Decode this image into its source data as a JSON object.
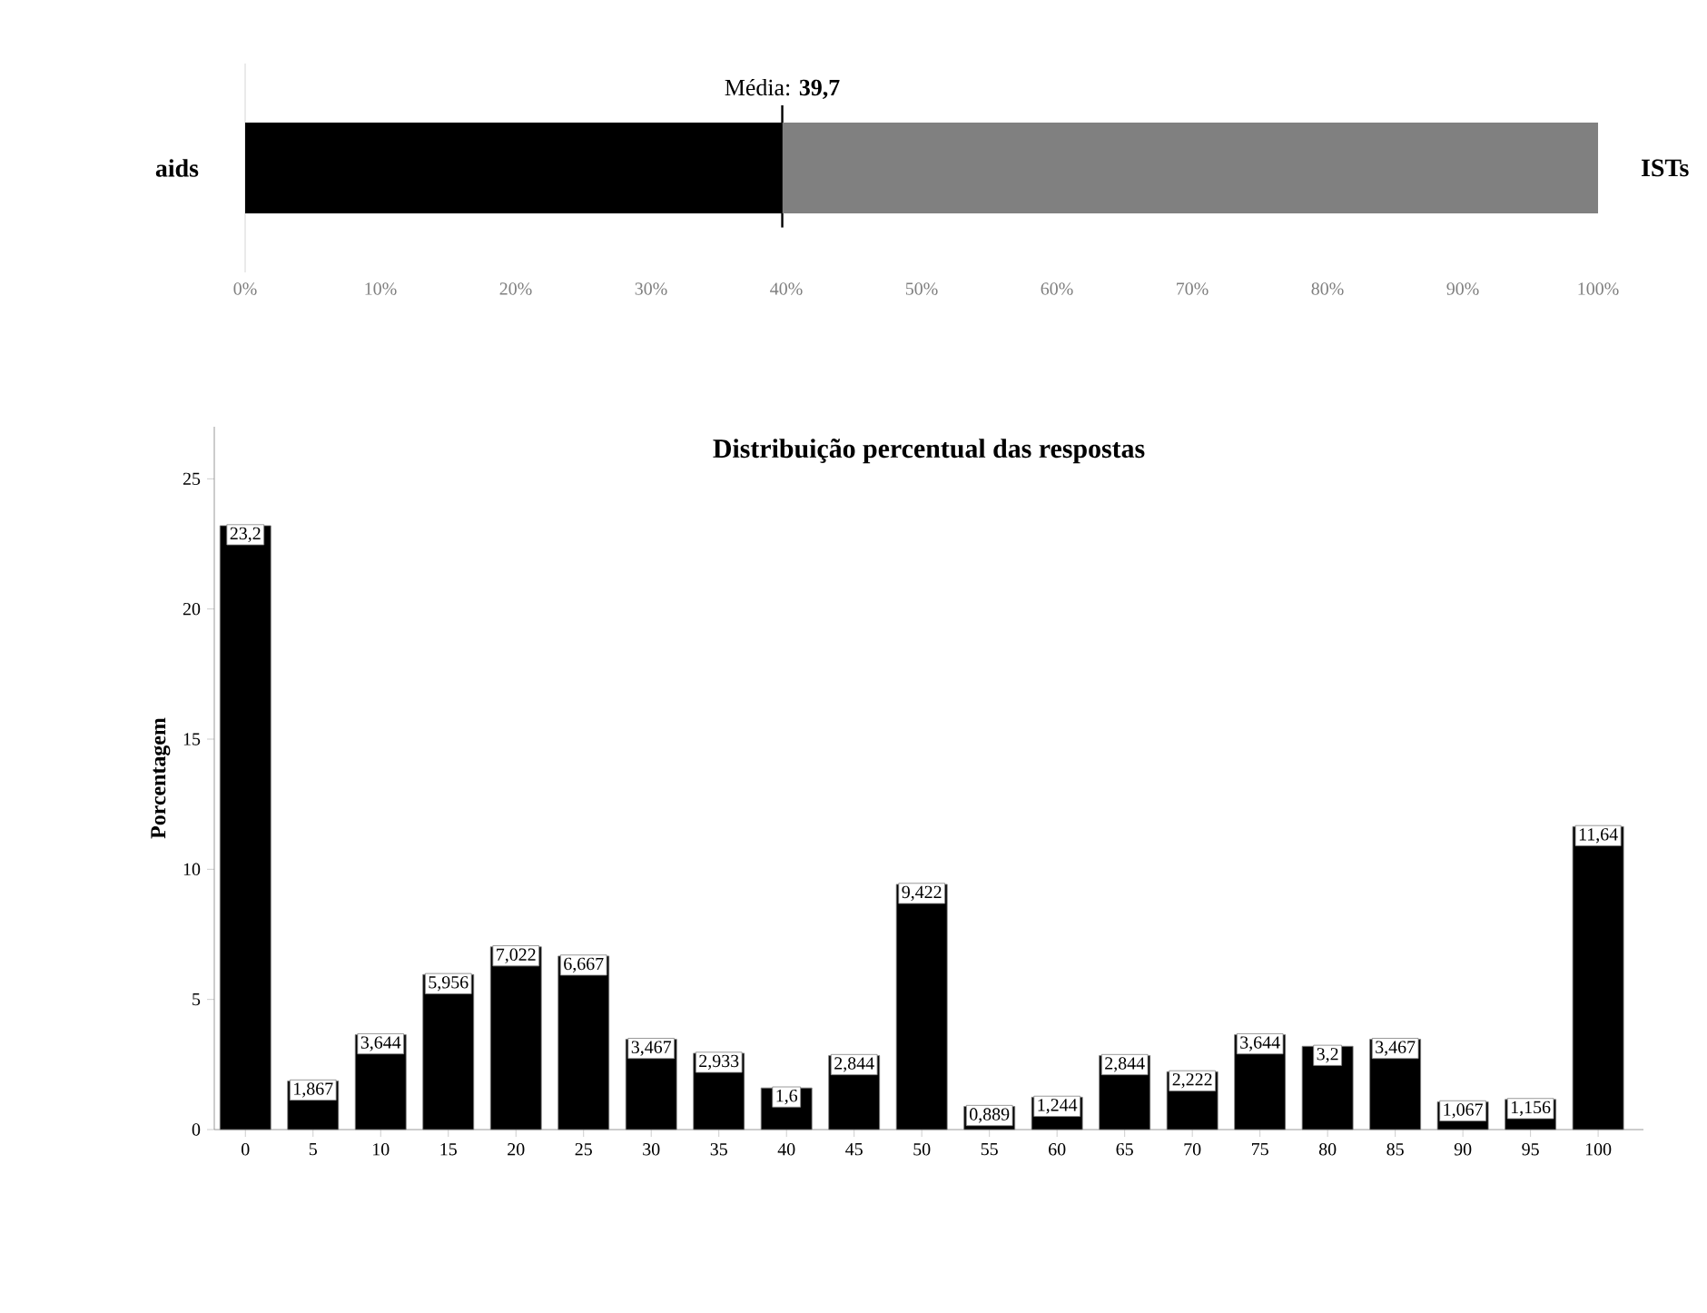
{
  "chart_data": [
    {
      "type": "bar",
      "orientation": "horizontal",
      "stacked": true,
      "categories": [
        null
      ],
      "series": [
        {
          "name": "aids",
          "color": "#000000",
          "values": [
            39.7
          ]
        },
        {
          "name": "ISTs",
          "color": "#808080",
          "values": [
            60.3
          ]
        }
      ],
      "xlim": [
        0,
        100
      ],
      "xticks": [
        {
          "value": 0,
          "label": "0%"
        },
        {
          "value": 10,
          "label": "10%"
        },
        {
          "value": 20,
          "label": "20%"
        },
        {
          "value": 30,
          "label": "30%"
        },
        {
          "value": 40,
          "label": "40%"
        },
        {
          "value": 50,
          "label": "50%"
        },
        {
          "value": 60,
          "label": "60%"
        },
        {
          "value": 70,
          "label": "70%"
        },
        {
          "value": 80,
          "label": "80%"
        },
        {
          "value": 90,
          "label": "90%"
        },
        {
          "value": 100,
          "label": "100%"
        }
      ],
      "tick_labels": "x",
      "ref_lines": [
        {
          "axis": "x",
          "value": 39.7,
          "label": "Média: **39,7**"
        }
      ]
    },
    {
      "type": "bar",
      "title": "Distribuição percentual das respostas",
      "ylabel": "Porcentagem",
      "categories": [
        "0",
        "5",
        "10",
        "15",
        "20",
        "25",
        "30",
        "35",
        "40",
        "45",
        "50",
        "55",
        "60",
        "65",
        "70",
        "75",
        "80",
        "85",
        "90",
        "95",
        "100"
      ],
      "values": [
        23.2,
        1.867,
        3.644,
        5.956,
        7.022,
        6.667,
        3.467,
        2.933,
        1.6,
        2.844,
        9.422,
        0.889,
        1.244,
        2.844,
        2.222,
        3.644,
        3.2,
        3.467,
        1.067,
        1.156,
        11.64
      ],
      "value_labels": [
        "23,2",
        "1,867",
        "3,644",
        "5,956",
        "7,022",
        "6,667",
        "3,467",
        "2,933",
        "1,6",
        "2,844",
        "9,422",
        "0,889",
        "1,244",
        "2,844",
        "2,222",
        "3,644",
        "3,2",
        "3,467",
        "1,067",
        "1,156",
        "11,64"
      ],
      "color": "#000000",
      "ylim": [
        0,
        27
      ],
      "yticks": [
        0,
        5,
        10,
        15,
        20,
        25
      ]
    }
  ]
}
